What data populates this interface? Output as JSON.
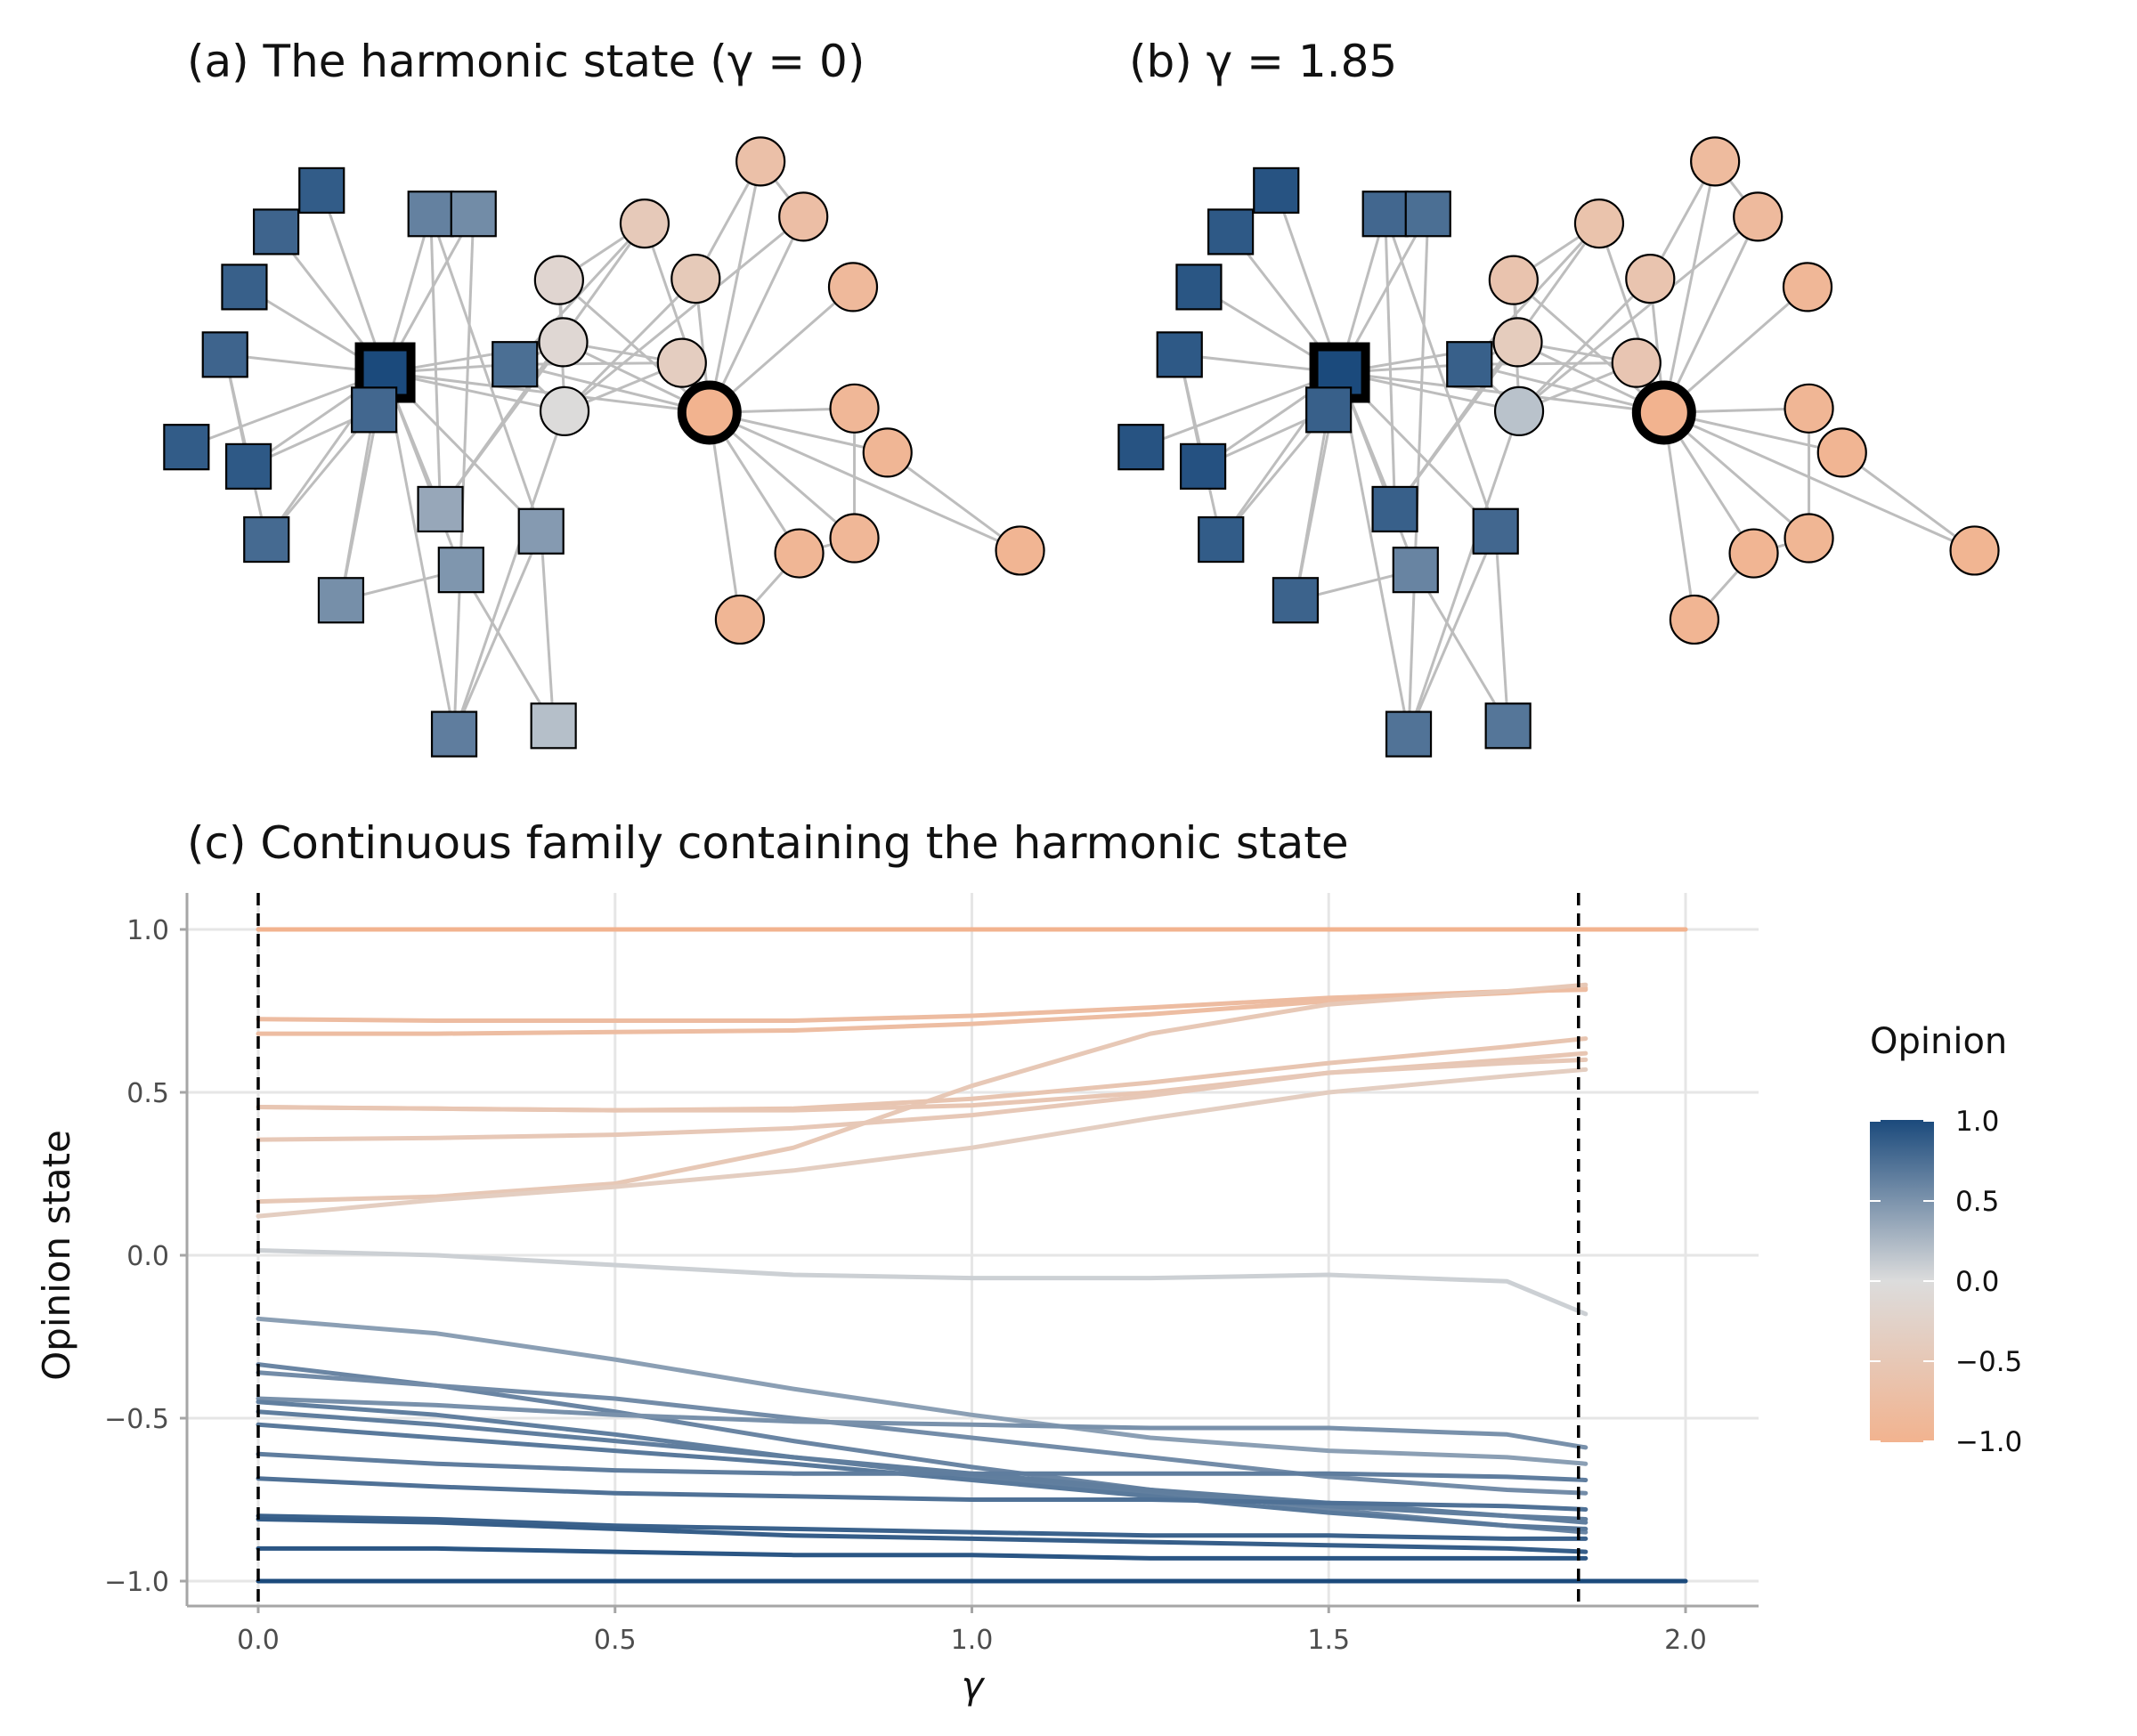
{
  "panel_a": {
    "title": "(a) The harmonic state (γ = 0)"
  },
  "panel_b": {
    "title": "(b) γ = 1.85"
  },
  "colors": {
    "blue": "#1b4a7c",
    "grey": "#dcdcdc",
    "orange": "#f2b38f",
    "edge": "#bdbdbd",
    "grid": "#e6e6e6",
    "axis": "#a6a6a6"
  },
  "network": {
    "node_shapes": {
      "square": "opinion source +1 group",
      "circle": "opinion source −1 group"
    },
    "nodes": [
      {
        "id": 1,
        "shape": "square",
        "op_a": 1.0,
        "op_b": 1.0,
        "leader": true
      },
      {
        "id": 2,
        "shape": "square",
        "op_a": 0.8,
        "op_b": 0.85
      },
      {
        "id": 3,
        "shape": "square",
        "op_a": 0.82,
        "op_b": 0.9
      },
      {
        "id": 4,
        "shape": "square",
        "op_a": 0.85,
        "op_b": 0.92
      },
      {
        "id": 5,
        "shape": "square",
        "op_a": 0.82,
        "op_b": 0.9
      },
      {
        "id": 6,
        "shape": "square",
        "op_a": 0.88,
        "op_b": 0.94
      },
      {
        "id": 7,
        "shape": "square",
        "op_a": 0.88,
        "op_b": 0.94
      },
      {
        "id": 8,
        "shape": "square",
        "op_a": 0.9,
        "op_b": 0.95
      },
      {
        "id": 9,
        "shape": "square",
        "op_a": 0.78,
        "op_b": 0.88
      },
      {
        "id": 10,
        "shape": "square",
        "op_a": 0.75,
        "op_b": 0.85
      },
      {
        "id": 11,
        "shape": "square",
        "op_a": 0.62,
        "op_b": 0.8
      },
      {
        "id": 12,
        "shape": "square",
        "op_a": 0.55,
        "op_b": 0.75
      },
      {
        "id": 13,
        "shape": "square",
        "op_a": 0.53,
        "op_b": 0.83
      },
      {
        "id": 14,
        "shape": "square",
        "op_a": 0.48,
        "op_b": 0.6
      },
      {
        "id": 15,
        "shape": "square",
        "op_a": 0.36,
        "op_b": 0.85
      },
      {
        "id": 16,
        "shape": "square",
        "op_a": 0.45,
        "op_b": 0.8
      },
      {
        "id": 17,
        "shape": "square",
        "op_a": 0.65,
        "op_b": 0.72
      },
      {
        "id": 18,
        "shape": "square",
        "op_a": 0.2,
        "op_b": 0.7
      },
      {
        "id": 19,
        "shape": "circle",
        "op_a": -0.02,
        "op_b": 0.18
      },
      {
        "id": 20,
        "shape": "circle",
        "op_a": -0.12,
        "op_b": -0.4
      },
      {
        "id": 21,
        "shape": "circle",
        "op_a": -0.16,
        "op_b": -0.6
      },
      {
        "id": 22,
        "shape": "circle",
        "op_a": -0.36,
        "op_b": -0.55
      },
      {
        "id": 23,
        "shape": "circle",
        "op_a": -0.46,
        "op_b": -0.62
      },
      {
        "id": 24,
        "shape": "circle",
        "op_a": -0.45,
        "op_b": -0.58
      },
      {
        "id": 25,
        "shape": "circle",
        "op_a": -0.68,
        "op_b": -0.8
      },
      {
        "id": 26,
        "shape": "circle",
        "op_a": -0.72,
        "op_b": -0.82
      },
      {
        "id": 27,
        "shape": "circle",
        "op_a": -0.85,
        "op_b": -0.9
      },
      {
        "id": 28,
        "shape": "circle",
        "op_a": -0.9,
        "op_b": -0.92
      },
      {
        "id": 29,
        "shape": "circle",
        "op_a": -0.92,
        "op_b": -0.95
      },
      {
        "id": 30,
        "shape": "circle",
        "op_a": -0.9,
        "op_b": -0.93
      },
      {
        "id": 31,
        "shape": "circle",
        "op_a": -0.92,
        "op_b": -0.95
      },
      {
        "id": 32,
        "shape": "circle",
        "op_a": -0.95,
        "op_b": -0.96
      },
      {
        "id": 33,
        "shape": "circle",
        "op_a": -0.92,
        "op_b": -0.95
      },
      {
        "id": 34,
        "shape": "circle",
        "op_a": -1.0,
        "op_b": -1.0,
        "leader": true
      }
    ],
    "edges": [
      [
        1,
        2
      ],
      [
        1,
        3
      ],
      [
        1,
        4
      ],
      [
        1,
        5
      ],
      [
        1,
        6
      ],
      [
        1,
        7
      ],
      [
        1,
        8
      ],
      [
        1,
        9
      ],
      [
        1,
        10
      ],
      [
        1,
        11
      ],
      [
        1,
        12
      ],
      [
        1,
        13
      ],
      [
        1,
        14
      ],
      [
        1,
        15
      ],
      [
        1,
        16
      ],
      [
        1,
        17
      ],
      [
        1,
        19
      ],
      [
        1,
        20
      ],
      [
        1,
        34
      ],
      [
        2,
        8
      ],
      [
        2,
        9
      ],
      [
        2,
        13
      ],
      [
        3,
        8
      ],
      [
        3,
        9
      ],
      [
        11,
        15
      ],
      [
        11,
        16
      ],
      [
        12,
        17
      ],
      [
        13,
        14
      ],
      [
        14,
        18
      ],
      [
        16,
        17
      ],
      [
        16,
        18
      ],
      [
        10,
        34
      ],
      [
        10,
        19
      ],
      [
        10,
        20
      ],
      [
        10,
        22
      ],
      [
        10,
        23
      ],
      [
        19,
        21
      ],
      [
        19,
        22
      ],
      [
        19,
        24
      ],
      [
        20,
        34
      ],
      [
        21,
        34
      ],
      [
        22,
        34
      ],
      [
        23,
        34
      ],
      [
        24,
        34
      ],
      [
        25,
        34
      ],
      [
        26,
        34
      ],
      [
        27,
        34
      ],
      [
        28,
        34
      ],
      [
        29,
        34
      ],
      [
        30,
        34
      ],
      [
        31,
        34
      ],
      [
        32,
        34
      ],
      [
        33,
        34
      ],
      [
        21,
        23
      ],
      [
        20,
        22
      ],
      [
        25,
        26
      ],
      [
        28,
        30
      ],
      [
        30,
        31
      ],
      [
        31,
        33
      ],
      [
        29,
        32
      ],
      [
        24,
        25
      ],
      [
        19,
        26
      ],
      [
        20,
        21
      ],
      [
        15,
        23
      ],
      [
        17,
        19
      ],
      [
        15,
        20
      ]
    ]
  },
  "panel_c": {
    "title": "(c) Continuous family containing the harmonic state"
  },
  "legend": {
    "title": "Opinion",
    "ticks": [
      "1.0",
      "0.5",
      "0.0",
      "−0.5",
      "−1.0"
    ]
  },
  "chart_data": {
    "type": "line",
    "title": "(c) Continuous family containing the harmonic state",
    "xlabel": "γ",
    "ylabel": "Opinion state",
    "xlim": [
      -0.1,
      2.1
    ],
    "ylim": [
      -1.1,
      1.1
    ],
    "xticks": [
      "0.0",
      "0.5",
      "1.0",
      "1.5",
      "2.0"
    ],
    "yticks": [
      "1.0",
      "0.5",
      "0.0",
      "−0.5",
      "−1.0"
    ],
    "grid": true,
    "vlines": [
      0.0,
      1.85
    ],
    "x": [
      0.0,
      0.25,
      0.5,
      0.75,
      1.0,
      1.25,
      1.5,
      1.75,
      1.86
    ],
    "series": [
      {
        "values": [
          1.0,
          1.0,
          1.0,
          1.0,
          1.0,
          1.0,
          1.0,
          1.0,
          1.0
        ],
        "extend_to": 2.0
      },
      {
        "values": [
          0.725,
          0.72,
          0.72,
          0.72,
          0.735,
          0.76,
          0.79,
          0.81,
          0.815
        ]
      },
      {
        "values": [
          0.68,
          0.68,
          0.685,
          0.69,
          0.71,
          0.74,
          0.78,
          0.805,
          0.82
        ]
      },
      {
        "values": [
          0.165,
          0.18,
          0.22,
          0.33,
          0.52,
          0.68,
          0.77,
          0.81,
          0.83
        ]
      },
      {
        "values": [
          0.455,
          0.45,
          0.445,
          0.45,
          0.48,
          0.53,
          0.59,
          0.64,
          0.665
        ]
      },
      {
        "values": [
          0.455,
          0.45,
          0.445,
          0.445,
          0.46,
          0.5,
          0.56,
          0.6,
          0.62
        ]
      },
      {
        "values": [
          0.355,
          0.36,
          0.37,
          0.39,
          0.43,
          0.49,
          0.56,
          0.59,
          0.6
        ]
      },
      {
        "values": [
          0.12,
          0.17,
          0.21,
          0.26,
          0.33,
          0.42,
          0.5,
          0.55,
          0.57
        ]
      },
      {
        "values": [
          0.015,
          0.0,
          -0.03,
          -0.06,
          -0.07,
          -0.07,
          -0.06,
          -0.08,
          -0.18
        ]
      },
      {
        "values": [
          -0.195,
          -0.24,
          -0.32,
          -0.41,
          -0.49,
          -0.56,
          -0.6,
          -0.62,
          -0.64
        ]
      },
      {
        "values": [
          -0.335,
          -0.4,
          -0.48,
          -0.57,
          -0.65,
          -0.72,
          -0.78,
          -0.83,
          -0.85
        ]
      },
      {
        "values": [
          -0.36,
          -0.4,
          -0.44,
          -0.5,
          -0.56,
          -0.62,
          -0.68,
          -0.72,
          -0.73
        ]
      },
      {
        "values": [
          -0.44,
          -0.46,
          -0.49,
          -0.51,
          -0.52,
          -0.53,
          -0.53,
          -0.55,
          -0.59
        ]
      },
      {
        "values": [
          -0.45,
          -0.49,
          -0.55,
          -0.62,
          -0.68,
          -0.73,
          -0.77,
          -0.8,
          -0.82
        ]
      },
      {
        "values": [
          -0.48,
          -0.52,
          -0.57,
          -0.62,
          -0.67,
          -0.72,
          -0.76,
          -0.8,
          -0.81
        ]
      },
      {
        "values": [
          -0.52,
          -0.56,
          -0.6,
          -0.64,
          -0.69,
          -0.74,
          -0.79,
          -0.83,
          -0.84
        ]
      },
      {
        "values": [
          -0.61,
          -0.64,
          -0.66,
          -0.67,
          -0.67,
          -0.67,
          -0.67,
          -0.68,
          -0.69
        ]
      },
      {
        "values": [
          -0.685,
          -0.71,
          -0.73,
          -0.74,
          -0.75,
          -0.75,
          -0.76,
          -0.77,
          -0.78
        ]
      },
      {
        "values": [
          -0.8,
          -0.81,
          -0.83,
          -0.84,
          -0.85,
          -0.86,
          -0.86,
          -0.87,
          -0.87
        ]
      },
      {
        "values": [
          -0.81,
          -0.82,
          -0.84,
          -0.86,
          -0.87,
          -0.88,
          -0.89,
          -0.9,
          -0.91
        ]
      },
      {
        "values": [
          -0.9,
          -0.9,
          -0.91,
          -0.92,
          -0.92,
          -0.93,
          -0.93,
          -0.93,
          -0.93
        ]
      },
      {
        "values": [
          -1.0,
          -1.0,
          -1.0,
          -1.0,
          -1.0,
          -1.0,
          -1.0,
          -1.0,
          -1.0
        ],
        "extend_to": 2.0
      }
    ]
  }
}
